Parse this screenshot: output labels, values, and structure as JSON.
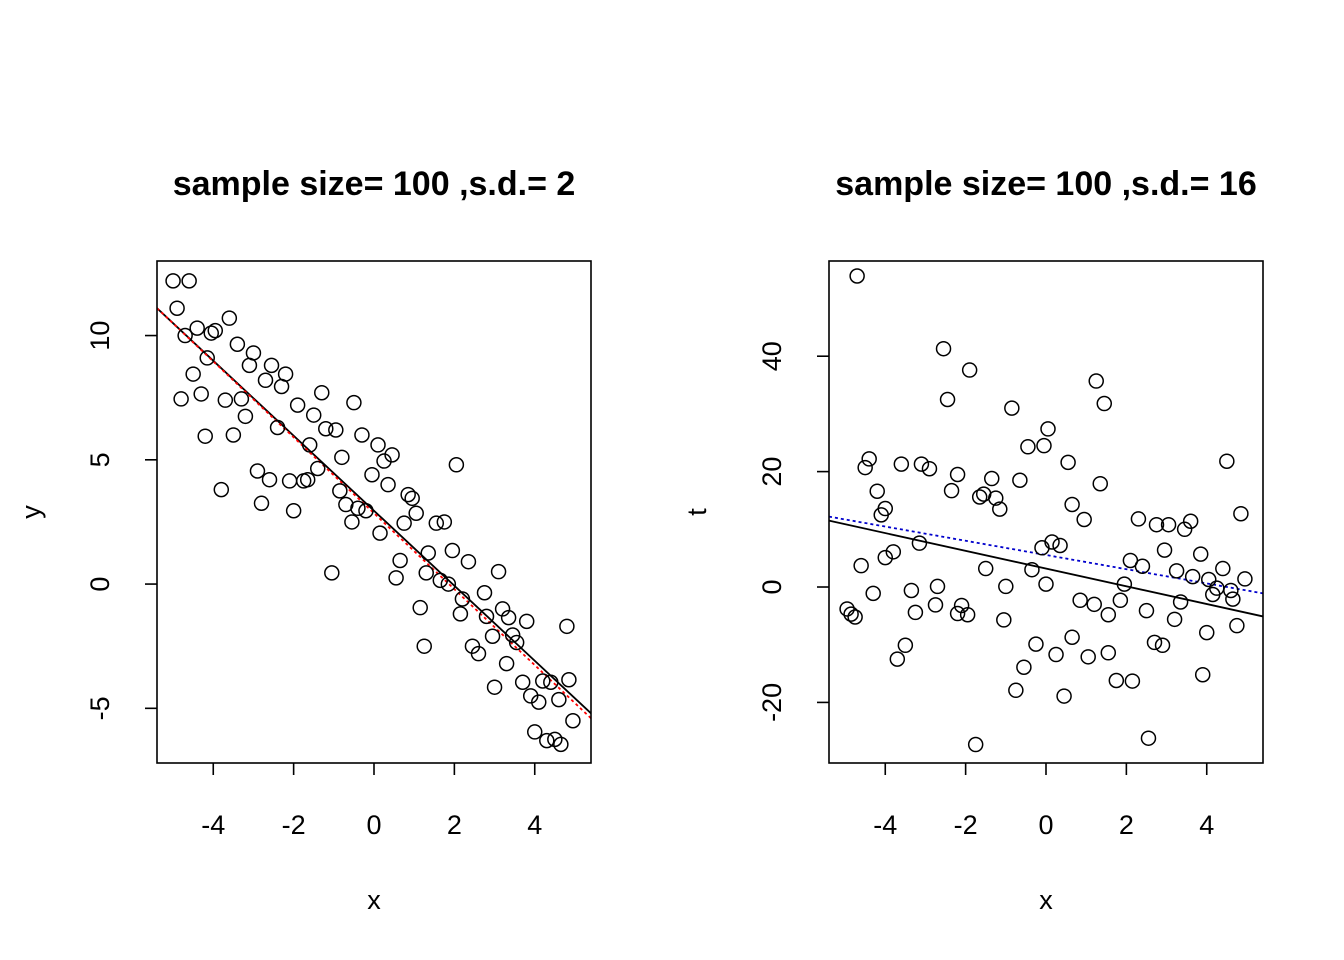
{
  "chart_data": [
    {
      "type": "scatter",
      "title": "sample size= 100 ,s.d.= 2",
      "xlabel": "x",
      "ylabel": "y",
      "xlim": [
        -5.4,
        5.4
      ],
      "ylim": [
        -7.2,
        13.0
      ],
      "xticks": [
        -4,
        -2,
        0,
        2,
        4
      ],
      "yticks": [
        -5,
        0,
        5,
        10
      ],
      "xtick_labels": [
        "-4",
        "-2",
        "0",
        "2",
        "4"
      ],
      "ytick_labels": [
        "-5",
        "0",
        "5",
        "10"
      ],
      "grid": false,
      "lines": [
        {
          "style": "solid",
          "color": "#000000",
          "from": [
            -5.4,
            11.1
          ],
          "to": [
            5.4,
            -5.2
          ]
        },
        {
          "style": "dotted",
          "color": "#ff0000",
          "from": [
            -5.4,
            11.1
          ],
          "to": [
            5.4,
            -5.4
          ]
        }
      ],
      "points": [
        [
          -5.0,
          12.2
        ],
        [
          -4.6,
          12.2
        ],
        [
          -4.9,
          11.1
        ],
        [
          -4.7,
          10.0
        ],
        [
          -4.4,
          10.3
        ],
        [
          -4.05,
          10.1
        ],
        [
          -3.95,
          10.2
        ],
        [
          -3.6,
          10.7
        ],
        [
          -3.4,
          9.65
        ],
        [
          -4.15,
          9.1
        ],
        [
          -3.0,
          9.3
        ],
        [
          -2.55,
          8.8
        ],
        [
          -2.2,
          8.45
        ],
        [
          -4.5,
          8.45
        ],
        [
          -3.1,
          8.8
        ],
        [
          -2.7,
          8.2
        ],
        [
          -2.3,
          7.95
        ],
        [
          -1.3,
          7.7
        ],
        [
          -4.8,
          7.45
        ],
        [
          -4.3,
          7.65
        ],
        [
          -3.3,
          7.45
        ],
        [
          -3.7,
          7.4
        ],
        [
          -1.9,
          7.2
        ],
        [
          -0.5,
          7.3
        ],
        [
          -1.5,
          6.8
        ],
        [
          -3.2,
          6.75
        ],
        [
          -1.2,
          6.25
        ],
        [
          -0.95,
          6.2
        ],
        [
          -2.4,
          6.3
        ],
        [
          -4.2,
          5.95
        ],
        [
          -3.5,
          6.0
        ],
        [
          -0.3,
          6.0
        ],
        [
          0.1,
          5.6
        ],
        [
          0.45,
          5.2
        ],
        [
          -1.6,
          5.6
        ],
        [
          -0.8,
          5.1
        ],
        [
          0.25,
          4.95
        ],
        [
          2.05,
          4.8
        ],
        [
          -1.4,
          4.65
        ],
        [
          -2.9,
          4.55
        ],
        [
          -0.05,
          4.4
        ],
        [
          -2.6,
          4.2
        ],
        [
          -1.75,
          4.15
        ],
        [
          -2.1,
          4.15
        ],
        [
          0.35,
          4.0
        ],
        [
          -3.8,
          3.8
        ],
        [
          -0.85,
          3.75
        ],
        [
          -1.65,
          4.2
        ],
        [
          0.85,
          3.6
        ],
        [
          0.95,
          3.45
        ],
        [
          -2.8,
          3.25
        ],
        [
          -0.7,
          3.2
        ],
        [
          -0.4,
          3.05
        ],
        [
          -0.2,
          2.95
        ],
        [
          -2.0,
          2.95
        ],
        [
          1.05,
          2.85
        ],
        [
          -0.55,
          2.5
        ],
        [
          0.75,
          2.45
        ],
        [
          1.55,
          2.45
        ],
        [
          1.75,
          2.5
        ],
        [
          0.15,
          2.05
        ],
        [
          1.95,
          1.35
        ],
        [
          1.35,
          1.25
        ],
        [
          2.35,
          0.9
        ],
        [
          0.65,
          0.95
        ],
        [
          -1.05,
          0.45
        ],
        [
          0.55,
          0.25
        ],
        [
          1.3,
          0.45
        ],
        [
          1.65,
          0.15
        ],
        [
          1.85,
          0.0
        ],
        [
          3.1,
          0.5
        ],
        [
          2.2,
          -0.6
        ],
        [
          2.75,
          -0.35
        ],
        [
          1.15,
          -0.95
        ],
        [
          3.2,
          -1.0
        ],
        [
          3.35,
          -1.35
        ],
        [
          2.15,
          -1.2
        ],
        [
          2.8,
          -1.3
        ],
        [
          3.8,
          -1.5
        ],
        [
          3.45,
          -2.05
        ],
        [
          3.55,
          -2.35
        ],
        [
          2.95,
          -2.1
        ],
        [
          4.8,
          -1.7
        ],
        [
          2.45,
          -2.5
        ],
        [
          1.25,
          -2.5
        ],
        [
          2.6,
          -2.8
        ],
        [
          3.3,
          -3.2
        ],
        [
          4.2,
          -3.9
        ],
        [
          4.4,
          -3.95
        ],
        [
          4.85,
          -3.85
        ],
        [
          3.7,
          -3.95
        ],
        [
          3.0,
          -4.15
        ],
        [
          3.9,
          -4.5
        ],
        [
          4.1,
          -4.75
        ],
        [
          4.6,
          -4.65
        ],
        [
          4.95,
          -5.5
        ],
        [
          4.0,
          -5.95
        ],
        [
          4.3,
          -6.3
        ],
        [
          4.5,
          -6.25
        ],
        [
          4.65,
          -6.45
        ]
      ]
    },
    {
      "type": "scatter",
      "title": "sample size= 100 ,s.d.= 16",
      "xlabel": "x",
      "ylabel": "t",
      "xlim": [
        -5.4,
        5.4
      ],
      "ylim": [
        -30.5,
        56.5
      ],
      "xticks": [
        -4,
        -2,
        0,
        2,
        4
      ],
      "yticks": [
        -20,
        0,
        20,
        40
      ],
      "xtick_labels": [
        "-4",
        "-2",
        "0",
        "2",
        "4"
      ],
      "ytick_labels": [
        "-20",
        "0",
        "20",
        "40"
      ],
      "grid": false,
      "lines": [
        {
          "style": "solid",
          "color": "#000000",
          "from": [
            -5.4,
            11.5
          ],
          "to": [
            5.4,
            -5.1
          ]
        },
        {
          "style": "dotted",
          "color": "#0000cc",
          "from": [
            -5.4,
            12.2
          ],
          "to": [
            5.4,
            -1.1
          ]
        }
      ],
      "points": [
        [
          -4.7,
          53.9
        ],
        [
          -2.55,
          41.3
        ],
        [
          -1.9,
          37.6
        ],
        [
          1.25,
          35.7
        ],
        [
          1.45,
          31.8
        ],
        [
          -2.45,
          32.5
        ],
        [
          -0.85,
          31.0
        ],
        [
          0.05,
          27.4
        ],
        [
          -0.45,
          24.3
        ],
        [
          -0.05,
          24.5
        ],
        [
          -4.4,
          22.2
        ],
        [
          -4.5,
          20.7
        ],
        [
          -3.6,
          21.3
        ],
        [
          -3.1,
          21.3
        ],
        [
          -2.9,
          20.5
        ],
        [
          -2.2,
          19.5
        ],
        [
          -1.35,
          18.8
        ],
        [
          -0.65,
          18.5
        ],
        [
          0.55,
          21.6
        ],
        [
          1.35,
          17.9
        ],
        [
          4.5,
          21.8
        ],
        [
          -4.2,
          16.6
        ],
        [
          -2.35,
          16.7
        ],
        [
          -1.55,
          16.1
        ],
        [
          -1.65,
          15.6
        ],
        [
          -1.25,
          15.4
        ],
        [
          -1.15,
          13.5
        ],
        [
          -4.0,
          13.6
        ],
        [
          -4.1,
          12.5
        ],
        [
          0.65,
          14.3
        ],
        [
          0.95,
          11.7
        ],
        [
          2.3,
          11.8
        ],
        [
          2.75,
          10.8
        ],
        [
          3.05,
          10.8
        ],
        [
          3.45,
          10.0
        ],
        [
          3.6,
          11.4
        ],
        [
          4.85,
          12.7
        ],
        [
          -3.15,
          7.6
        ],
        [
          0.15,
          7.8
        ],
        [
          0.35,
          7.2
        ],
        [
          -0.1,
          6.8
        ],
        [
          -3.8,
          6.1
        ],
        [
          -4.0,
          5.1
        ],
        [
          -4.6,
          3.7
        ],
        [
          2.1,
          4.6
        ],
        [
          2.4,
          3.6
        ],
        [
          2.95,
          6.4
        ],
        [
          3.85,
          5.7
        ],
        [
          3.25,
          2.8
        ],
        [
          3.65,
          1.8
        ],
        [
          4.05,
          1.3
        ],
        [
          4.4,
          3.2
        ],
        [
          4.95,
          1.4
        ],
        [
          -1.5,
          3.2
        ],
        [
          -0.35,
          3.0
        ],
        [
          -1.0,
          0.1
        ],
        [
          -2.7,
          0.1
        ],
        [
          -3.35,
          -0.6
        ],
        [
          -4.3,
          -1.1
        ],
        [
          1.95,
          0.5
        ],
        [
          4.15,
          -1.3
        ],
        [
          4.25,
          -0.2
        ],
        [
          4.6,
          -0.6
        ],
        [
          4.65,
          -2.1
        ],
        [
          3.35,
          -2.6
        ],
        [
          1.85,
          -2.3
        ],
        [
          0.85,
          -2.3
        ],
        [
          1.2,
          -3.0
        ],
        [
          -2.75,
          -3.1
        ],
        [
          -2.2,
          -4.6
        ],
        [
          -2.1,
          -3.2
        ],
        [
          -1.95,
          -4.8
        ],
        [
          -3.25,
          -4.4
        ],
        [
          -4.95,
          -3.8
        ],
        [
          -4.85,
          -4.7
        ],
        [
          -4.75,
          -5.2
        ],
        [
          -1.05,
          -5.7
        ],
        [
          1.55,
          -4.8
        ],
        [
          2.5,
          -4.1
        ],
        [
          3.2,
          -5.6
        ],
        [
          4.75,
          -6.7
        ],
        [
          4.0,
          -7.9
        ],
        [
          0.65,
          -8.7
        ],
        [
          2.7,
          -9.6
        ],
        [
          2.9,
          -10.1
        ],
        [
          -0.25,
          -9.9
        ],
        [
          -3.5,
          -10.1
        ],
        [
          -3.7,
          -12.5
        ],
        [
          0.25,
          -11.7
        ],
        [
          1.05,
          -12.1
        ],
        [
          1.55,
          -11.4
        ],
        [
          -0.55,
          -13.9
        ],
        [
          3.9,
          -15.2
        ],
        [
          1.75,
          -16.2
        ],
        [
          2.15,
          -16.3
        ],
        [
          -0.75,
          -17.9
        ],
        [
          0.45,
          -18.9
        ],
        [
          -1.75,
          -27.3
        ],
        [
          2.55,
          -26.2
        ],
        [
          0.0,
          0.5
        ]
      ]
    }
  ]
}
